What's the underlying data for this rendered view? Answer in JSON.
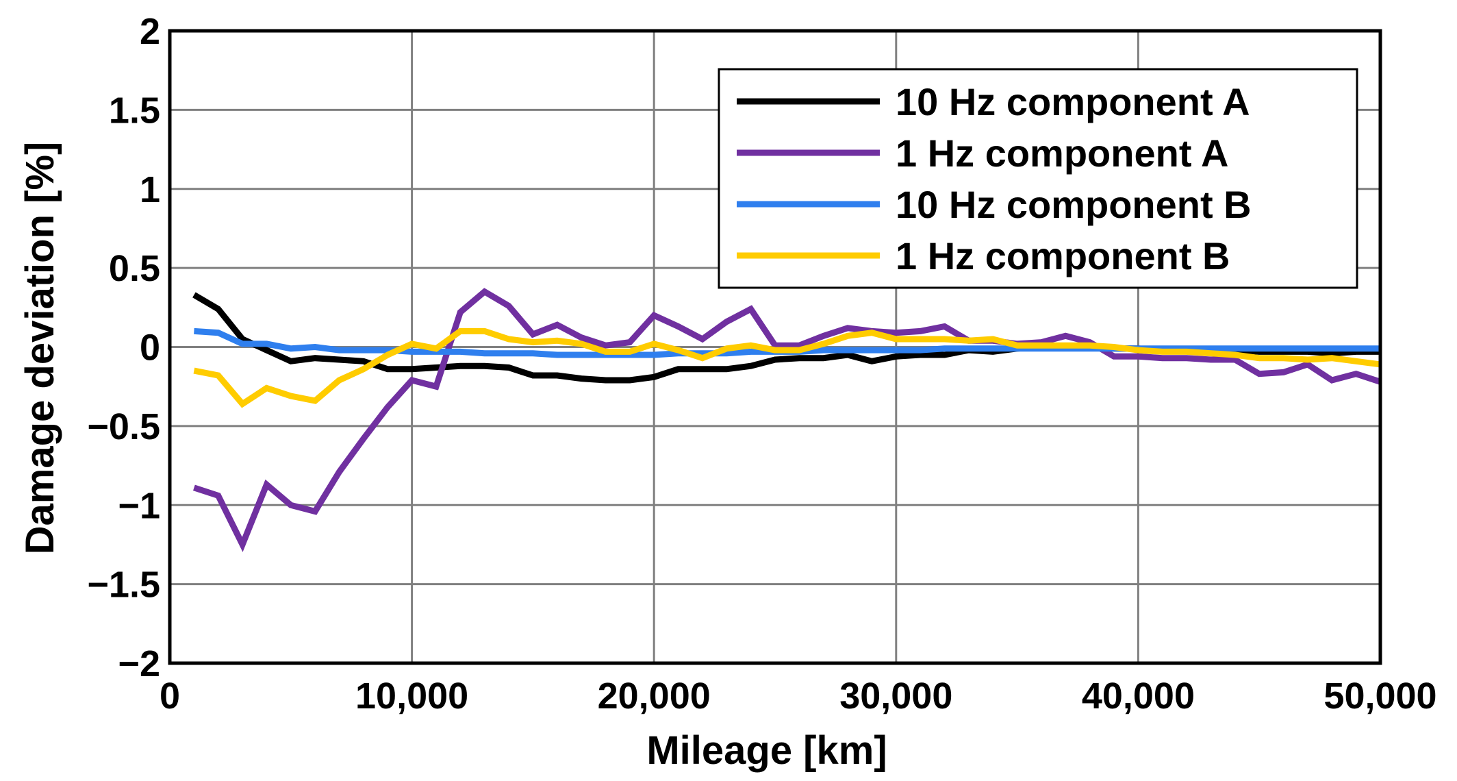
{
  "chart_data": {
    "type": "line",
    "xlabel": "Mileage [km]",
    "ylabel": "Damage deviation [%]",
    "xlim": [
      0,
      50000
    ],
    "ylim": [
      -2,
      2
    ],
    "x_ticks": [
      0,
      10000,
      20000,
      30000,
      40000,
      50000
    ],
    "x_tick_labels": [
      "0",
      "10,000",
      "20,000",
      "30,000",
      "40,000",
      "50,000"
    ],
    "y_ticks": [
      2,
      1.5,
      1,
      0.5,
      0,
      -0.5,
      -1,
      -1.5,
      -2
    ],
    "y_tick_labels": [
      "2",
      "1.5",
      "1",
      "0.5",
      "0",
      "−0.5",
      "−1",
      "−1.5",
      "−2"
    ],
    "grid": true,
    "legend_position": "top-right",
    "x": [
      1000,
      2000,
      3000,
      4000,
      5000,
      6000,
      7000,
      8000,
      9000,
      10000,
      11000,
      12000,
      13000,
      14000,
      15000,
      16000,
      17000,
      18000,
      19000,
      20000,
      21000,
      22000,
      23000,
      24000,
      25000,
      26000,
      27000,
      28000,
      29000,
      30000,
      31000,
      32000,
      33000,
      34000,
      35000,
      36000,
      37000,
      38000,
      39000,
      40000,
      41000,
      42000,
      43000,
      44000,
      45000,
      46000,
      47000,
      48000,
      49000,
      50000
    ],
    "series": [
      {
        "name": "10 Hz component A",
        "color": "#000000",
        "values": [
          0.33,
          0.24,
          0.05,
          -0.02,
          -0.09,
          -0.07,
          -0.08,
          -0.09,
          -0.14,
          -0.14,
          -0.13,
          -0.12,
          -0.12,
          -0.13,
          -0.18,
          -0.18,
          -0.2,
          -0.21,
          -0.21,
          -0.19,
          -0.14,
          -0.14,
          -0.14,
          -0.12,
          -0.08,
          -0.07,
          -0.07,
          -0.05,
          -0.09,
          -0.06,
          -0.05,
          -0.05,
          -0.02,
          -0.03,
          -0.01,
          0.0,
          0.0,
          0.0,
          -0.01,
          -0.01,
          -0.02,
          -0.02,
          -0.02,
          -0.02,
          -0.03,
          -0.03,
          -0.03,
          -0.04,
          -0.03,
          -0.03
        ]
      },
      {
        "name": "1 Hz component A",
        "color": "#7030a0",
        "values": [
          -0.89,
          -0.94,
          -1.25,
          -0.87,
          -1.0,
          -1.04,
          -0.79,
          -0.58,
          -0.38,
          -0.21,
          -0.25,
          0.22,
          0.35,
          0.26,
          0.08,
          0.14,
          0.06,
          0.01,
          0.03,
          0.2,
          0.13,
          0.05,
          0.16,
          0.24,
          0.01,
          0.01,
          0.07,
          0.12,
          0.1,
          0.09,
          0.1,
          0.13,
          0.04,
          0.04,
          0.02,
          0.03,
          0.07,
          0.03,
          -0.06,
          -0.06,
          -0.07,
          -0.07,
          -0.08,
          -0.08,
          -0.17,
          -0.16,
          -0.11,
          -0.21,
          -0.17,
          -0.22
        ]
      },
      {
        "name": "10 Hz component B",
        "color": "#2f7fee",
        "values": [
          0.1,
          0.09,
          0.02,
          0.02,
          -0.01,
          0.0,
          -0.02,
          -0.02,
          -0.02,
          -0.03,
          -0.03,
          -0.03,
          -0.04,
          -0.04,
          -0.04,
          -0.05,
          -0.05,
          -0.05,
          -0.05,
          -0.05,
          -0.04,
          -0.04,
          -0.04,
          -0.03,
          -0.03,
          -0.03,
          -0.02,
          -0.02,
          -0.02,
          -0.02,
          -0.02,
          -0.01,
          -0.01,
          -0.01,
          -0.01,
          -0.01,
          -0.01,
          -0.01,
          -0.01,
          -0.01,
          -0.01,
          -0.01,
          -0.01,
          -0.01,
          -0.01,
          -0.01,
          -0.01,
          -0.01,
          -0.01,
          -0.01
        ]
      },
      {
        "name": "1 Hz component B",
        "color": "#ffcc00",
        "values": [
          -0.15,
          -0.18,
          -0.36,
          -0.26,
          -0.31,
          -0.34,
          -0.21,
          -0.14,
          -0.05,
          0.02,
          -0.01,
          0.1,
          0.1,
          0.05,
          0.03,
          0.04,
          0.02,
          -0.03,
          -0.03,
          0.02,
          -0.02,
          -0.07,
          -0.01,
          0.01,
          -0.02,
          -0.02,
          0.02,
          0.07,
          0.09,
          0.05,
          0.05,
          0.05,
          0.04,
          0.05,
          0.01,
          0.01,
          0.01,
          0.01,
          0.0,
          -0.02,
          -0.03,
          -0.03,
          -0.04,
          -0.05,
          -0.07,
          -0.07,
          -0.08,
          -0.07,
          -0.09,
          -0.11
        ]
      }
    ]
  }
}
